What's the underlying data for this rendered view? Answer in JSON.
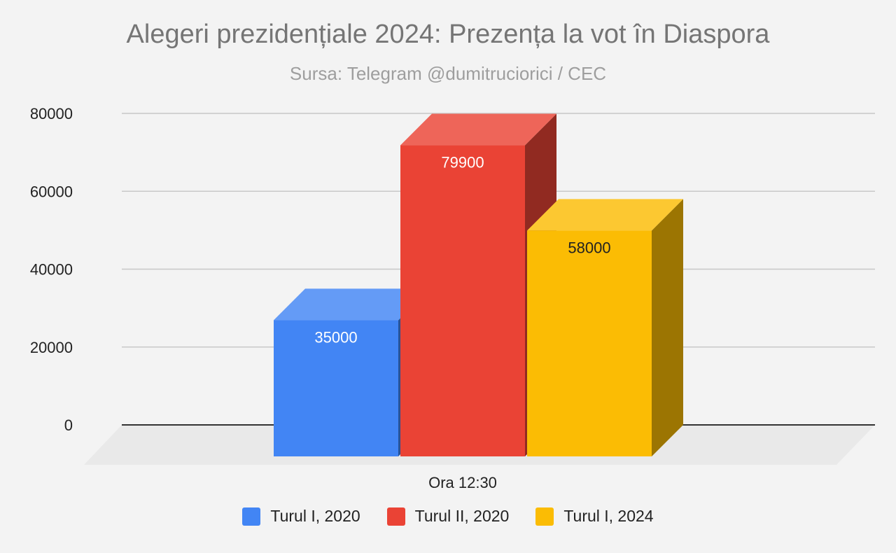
{
  "header": {
    "title": "Alegeri prezidențiale 2024: Prezența la vot în Diaspora",
    "subtitle": "Sursa: Telegram @dumitruciorici / CEC"
  },
  "chart_data": {
    "type": "bar",
    "style": "3d",
    "categories": [
      "Ora 12:30"
    ],
    "series": [
      {
        "name": "Turul I, 2020",
        "values": [
          35000
        ],
        "label": "35000",
        "color": "#4285f4",
        "label_color": "#ffffff"
      },
      {
        "name": "Turul II, 2020",
        "values": [
          79900
        ],
        "label": "79900",
        "color": "#ea4335",
        "label_color": "#ffffff"
      },
      {
        "name": "Turul I, 2024",
        "values": [
          58000
        ],
        "label": "58000",
        "color": "#fbbc04",
        "label_color": "#222222"
      }
    ],
    "yticks": [
      "80000",
      "60000",
      "40000",
      "20000",
      "0"
    ],
    "ylim": [
      0,
      80000
    ],
    "grid": true,
    "legend": "bottom"
  }
}
